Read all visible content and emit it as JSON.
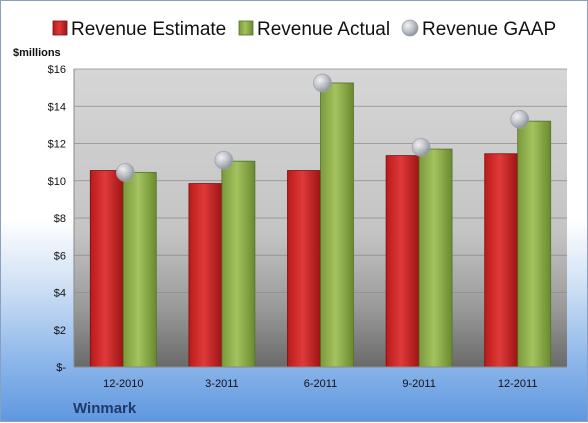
{
  "chart_data": {
    "type": "bar",
    "categories": [
      "12-2010",
      "3-2011",
      "6-2011",
      "9-2011",
      "12-2011"
    ],
    "series": [
      {
        "name": "Revenue Estimate",
        "type": "bar",
        "color": "#cc2222",
        "values": [
          10.55,
          9.85,
          10.55,
          11.35,
          11.45
        ]
      },
      {
        "name": "Revenue Actual",
        "type": "bar",
        "color": "#8aaa4a",
        "values": [
          10.45,
          11.05,
          15.25,
          11.7,
          13.2
        ]
      },
      {
        "name": "Revenue GAAP",
        "type": "marker",
        "color": "#b8bcc4",
        "values": [
          10.45,
          11.1,
          15.25,
          11.8,
          13.3
        ]
      }
    ],
    "ylim": [
      0,
      16
    ],
    "y_ticks": [
      "$-",
      "$2",
      "$4",
      "$6",
      "$8",
      "$10",
      "$12",
      "$14",
      "$16"
    ],
    "ylabel": "$millions",
    "legend_position": "top",
    "grid": true,
    "company": "Winmark"
  }
}
